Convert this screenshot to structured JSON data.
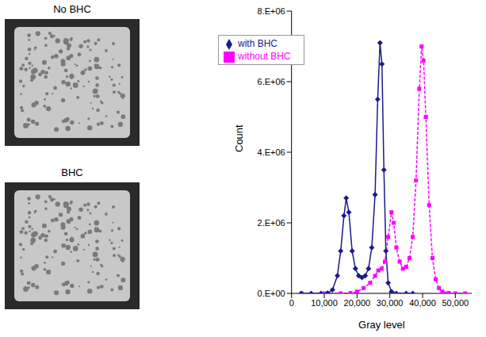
{
  "image_titles": [
    "No BHC",
    "BHC"
  ],
  "chart_data": {
    "type": "line",
    "x_label": "Gray level",
    "y_label": "Count",
    "xlim": [
      0,
      55000
    ],
    "xticks": [
      0,
      {
        "value": 10000,
        "label": "10,000"
      },
      {
        "value": 20000,
        "label": "20,000"
      },
      {
        "value": 30000,
        "label": "30,000"
      },
      {
        "value": 40000,
        "label": "40,000"
      },
      {
        "value": 50000,
        "label": "50,000"
      }
    ],
    "ylim": [
      0,
      8000000
    ],
    "yticks": [
      {
        "value": 0,
        "label": "0.E+00"
      },
      {
        "value": 2000000,
        "label": "2.E+06"
      },
      {
        "value": 4000000,
        "label": "4.E+06"
      },
      {
        "value": 6000000,
        "label": "6.E+06"
      },
      {
        "value": 8000000,
        "label": "8.E+06"
      }
    ],
    "grid": false,
    "legend": "upper left",
    "series": [
      {
        "name": "without BHC",
        "color": "#ff00ff",
        "marker": "square",
        "line_style": "dashed",
        "x": [
          3000,
          10000,
          15000,
          18000,
          20000,
          22000,
          24000,
          25500,
          26500,
          27500,
          28500,
          29500,
          30500,
          31200,
          32000,
          33000,
          34000,
          35000,
          36000,
          37000,
          38000,
          39000,
          39700,
          40300,
          41000,
          42000,
          43000,
          44000,
          45000,
          46000,
          48000,
          50000,
          53000
        ],
        "values": [
          0,
          0,
          0,
          10000,
          50000,
          150000,
          300000,
          500000,
          650000,
          700000,
          900000,
          1600000,
          2300000,
          2000000,
          1300000,
          900000,
          700000,
          750000,
          1000000,
          1600000,
          3200000,
          5800000,
          7000000,
          6600000,
          5000000,
          2500000,
          1000000,
          400000,
          150000,
          50000,
          10000,
          0,
          0
        ]
      },
      {
        "name": "with BHC",
        "color": "#1a1a8c",
        "marker": "diamond",
        "line_style": "solid",
        "x": [
          3000,
          6000,
          9000,
          11000,
          12500,
          14000,
          15000,
          16000,
          16700,
          17500,
          18500,
          19500,
          20500,
          21500,
          22500,
          23500,
          24500,
          25500,
          26300,
          27000,
          27600,
          28200,
          28800,
          29500,
          30500,
          32000,
          35000,
          37000
        ],
        "values": [
          0,
          0,
          0,
          10000,
          100000,
          500000,
          1200000,
          2200000,
          2700000,
          2300000,
          1200000,
          700000,
          500000,
          450000,
          500000,
          700000,
          1300000,
          2800000,
          5500000,
          7100000,
          6500000,
          3500000,
          1200000,
          300000,
          50000,
          0,
          0,
          0
        ]
      }
    ]
  }
}
